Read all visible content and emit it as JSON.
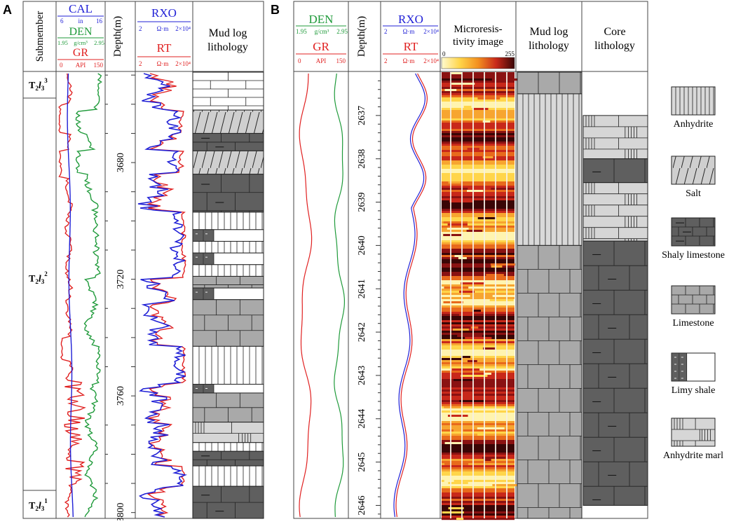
{
  "panel_a": {
    "label": "A",
    "headers": {
      "submember": "Submember",
      "cal": {
        "name": "CAL",
        "min": "6",
        "unit": "in",
        "max": "16"
      },
      "den": {
        "name": "DEN",
        "min": "1.95",
        "unit": "g/cm³",
        "max": "2.95"
      },
      "gr": {
        "name": "GR",
        "min": "0",
        "unit": "API",
        "max": "150"
      },
      "depth": "Depth(m)",
      "rxo": {
        "name": "RXO",
        "min": "2",
        "unit": "Ω·m",
        "max": "2×10⁴"
      },
      "rt": {
        "name": "RT",
        "min": "2",
        "unit": "Ω·m",
        "max": "2×10⁴"
      },
      "mudlog": "Mud log lithology"
    },
    "submembers": {
      "upper": {
        "base": "T",
        "sub": "2",
        "letter": "l",
        "sub2": "3",
        "sup": "3"
      },
      "middle": {
        "base": "T",
        "sub": "2",
        "letter": "l",
        "sub2": "3",
        "sup": "2"
      },
      "lower": {
        "base": "T",
        "sub": "2",
        "letter": "l",
        "sub2": "3",
        "sup": "1"
      }
    },
    "depth_ticks": [
      "3680",
      "3720",
      "3760",
      "3800"
    ],
    "mudlog_intervals": [
      {
        "top": 3649,
        "bottom": 3662,
        "lith": "limestone_white"
      },
      {
        "top": 3662,
        "bottom": 3670,
        "lith": "salt"
      },
      {
        "top": 3670,
        "bottom": 3676,
        "lith": "shaly_limestone"
      },
      {
        "top": 3676,
        "bottom": 3684,
        "lith": "salt"
      },
      {
        "top": 3684,
        "bottom": 3697,
        "lith": "shaly_limestone"
      },
      {
        "top": 3697,
        "bottom": 3703,
        "lith": "anhydrite"
      },
      {
        "top": 3703,
        "bottom": 3707,
        "lith": "limy_shale"
      },
      {
        "top": 3707,
        "bottom": 3711,
        "lith": "anhydrite"
      },
      {
        "top": 3711,
        "bottom": 3715,
        "lith": "limy_shale"
      },
      {
        "top": 3715,
        "bottom": 3719,
        "lith": "anhydrite"
      },
      {
        "top": 3719,
        "bottom": 3723,
        "lith": "limestone"
      },
      {
        "top": 3723,
        "bottom": 3727,
        "lith": "limy_shale"
      },
      {
        "top": 3727,
        "bottom": 3743,
        "lith": "limestone"
      },
      {
        "top": 3743,
        "bottom": 3756,
        "lith": "anhydrite"
      },
      {
        "top": 3756,
        "bottom": 3759,
        "lith": "limy_shale"
      },
      {
        "top": 3759,
        "bottom": 3769,
        "lith": "limestone"
      },
      {
        "top": 3769,
        "bottom": 3776,
        "lith": "anhydrite_marl"
      },
      {
        "top": 3776,
        "bottom": 3779,
        "lith": "anhydrite"
      },
      {
        "top": 3779,
        "bottom": 3784,
        "lith": "shaly_limestone"
      },
      {
        "top": 3784,
        "bottom": 3791,
        "lith": "anhydrite"
      },
      {
        "top": 3791,
        "bottom": 3802,
        "lith": "shaly_limestone"
      }
    ]
  },
  "panel_b": {
    "label": "B",
    "headers": {
      "den": {
        "name": "DEN",
        "min": "1.95",
        "unit": "g/cm³",
        "max": "2.95"
      },
      "gr": {
        "name": "GR",
        "min": "0",
        "unit": "API",
        "max": "150"
      },
      "depth": "Depth(m)",
      "rxo": {
        "name": "RXO",
        "min": "2",
        "unit": "Ω·m",
        "max": "2×10⁴"
      },
      "rt": {
        "name": "RT",
        "min": "2",
        "unit": "Ω·m",
        "max": "2×10⁴"
      },
      "micro": {
        "line1": "Microresis-",
        "line2": "tivity image",
        "min": "0",
        "max": "255"
      },
      "mudlog": {
        "line1": "Mud log",
        "line2": "lithology"
      },
      "core": {
        "line1": "Core",
        "line2": "lithology"
      }
    },
    "depth_ticks": [
      "2637",
      "2638",
      "2639",
      "2640",
      "2641",
      "2642",
      "2643",
      "2644",
      "2645",
      "2646"
    ],
    "mudlog_intervals": [
      {
        "top": 2636.0,
        "bottom": 2636.5,
        "lith": "limestone"
      },
      {
        "top": 2636.5,
        "bottom": 2640.0,
        "lith": "anhydrite"
      },
      {
        "top": 2640.0,
        "bottom": 2646.5,
        "lith": "limestone"
      }
    ],
    "core_intervals": [
      {
        "top": 2637.0,
        "bottom": 2638.0,
        "lith": "anhydrite_marl"
      },
      {
        "top": 2638.0,
        "bottom": 2638.55,
        "lith": "shaly_limestone"
      },
      {
        "top": 2638.55,
        "bottom": 2639.9,
        "lith": "anhydrite_marl"
      },
      {
        "top": 2639.9,
        "bottom": 2646.0,
        "lith": "shaly_limestone"
      }
    ]
  },
  "legend": [
    {
      "key": "anhydrite",
      "label": "Anhydrite"
    },
    {
      "key": "salt",
      "label": "Salt"
    },
    {
      "key": "shaly_limestone",
      "label": "Shaly limestone"
    },
    {
      "key": "limestone",
      "label": "Limestone"
    },
    {
      "key": "limy_shale",
      "label": "Limy shale"
    },
    {
      "key": "anhydrite_marl",
      "label": "Anhydrite marl"
    }
  ],
  "colors": {
    "cal": "#1f1fd6",
    "den": "#1f9a3a",
    "gr": "#e02020",
    "rxo": "#1f1fd6",
    "rt": "#e02020",
    "anhydrite": "#d9d9d9",
    "salt": "#cfcfcf",
    "shaly_limestone": "#5f5f5f",
    "limestone": "#a9a9a9",
    "limy_shale_dark": "#5f5f5f",
    "anhydrite_marl": "#d6d6d6"
  }
}
